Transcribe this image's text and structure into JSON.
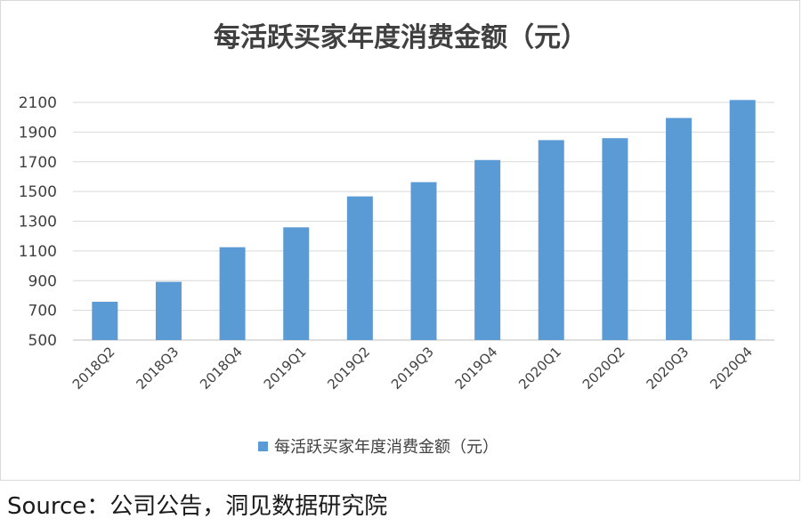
{
  "chart_data": {
    "type": "bar",
    "title": "每活跃买家年度消费金额（元）",
    "categories": [
      "2018Q2",
      "2018Q3",
      "2018Q4",
      "2019Q1",
      "2019Q2",
      "2019Q3",
      "2019Q4",
      "2020Q1",
      "2020Q2",
      "2020Q3",
      "2020Q4"
    ],
    "series": [
      {
        "name": "每活跃买家年度消费金额（元）",
        "values": [
          758,
          892,
          1125,
          1259,
          1467,
          1563,
          1712,
          1846,
          1859,
          1995,
          2116
        ]
      }
    ],
    "yticks": [
      500,
      700,
      900,
      1100,
      1300,
      1500,
      1700,
      1900,
      2100
    ],
    "ylim": [
      500,
      2200
    ],
    "grid": true,
    "legend_position": "bottom",
    "colors": {
      "bar": "#5b9bd5",
      "grid": "#d9d9d9"
    }
  },
  "source": "Source：公司公告，洞见数据研究院"
}
